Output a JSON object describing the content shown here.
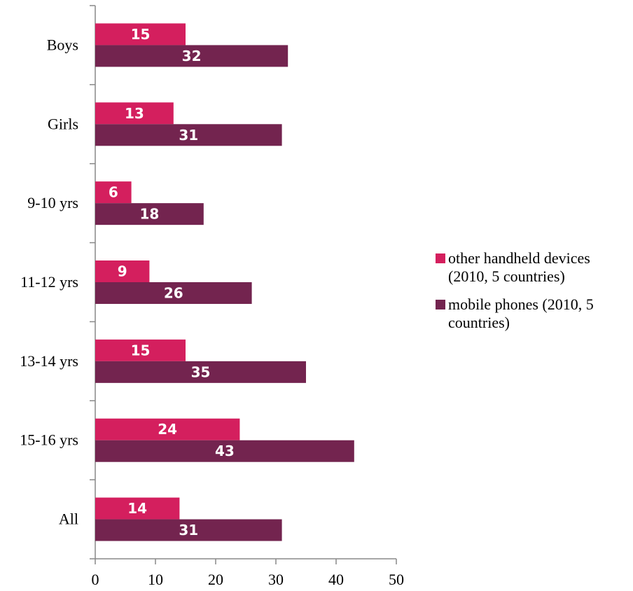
{
  "chart_data": {
    "type": "bar",
    "orientation": "horizontal",
    "categories": [
      "Boys",
      "Girls",
      "9-10 yrs",
      "11-12 yrs",
      "13-14 yrs",
      "15-16 yrs",
      "All"
    ],
    "series": [
      {
        "name": "other handheld devices (2010, 5 countries)",
        "color": "#d41f5e",
        "values": [
          15,
          13,
          6,
          9,
          15,
          24,
          14
        ]
      },
      {
        "name": "mobile phones (2010, 5 countries)",
        "color": "#73244f",
        "values": [
          32,
          31,
          18,
          26,
          35,
          43,
          31
        ]
      }
    ],
    "xlim": [
      0,
      50
    ],
    "xticks": [
      0,
      10,
      20,
      30,
      40,
      50
    ],
    "grid": false,
    "legend_position": "right"
  }
}
